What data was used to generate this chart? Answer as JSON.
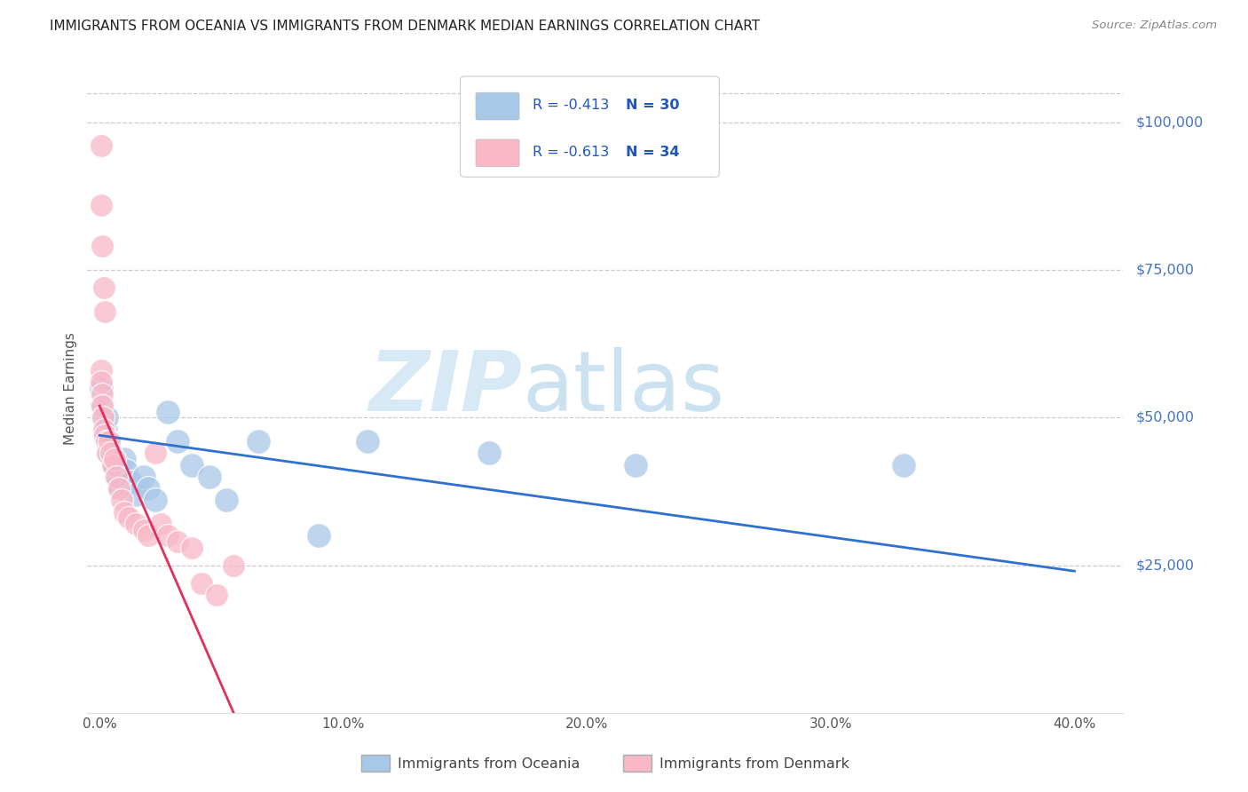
{
  "title": "IMMIGRANTS FROM OCEANIA VS IMMIGRANTS FROM DENMARK MEDIAN EARNINGS CORRELATION CHART",
  "source": "Source: ZipAtlas.com",
  "ylabel": "Median Earnings",
  "xlabel_ticks": [
    "0.0%",
    "10.0%",
    "20.0%",
    "30.0%",
    "40.0%"
  ],
  "xlabel_vals": [
    0.0,
    10.0,
    20.0,
    30.0,
    40.0
  ],
  "ytick_labels": [
    "$25,000",
    "$50,000",
    "$75,000",
    "$100,000"
  ],
  "ytick_vals": [
    25000,
    50000,
    75000,
    100000
  ],
  "ylim": [
    0,
    110000
  ],
  "xlim": [
    -0.5,
    42
  ],
  "blue_R": "-0.413",
  "blue_N": "30",
  "pink_R": "-0.613",
  "pink_N": "34",
  "blue_color": "#a8c8e8",
  "pink_color": "#f8b8c8",
  "blue_label": "Immigrants from Oceania",
  "pink_label": "Immigrants from Denmark",
  "blue_line_color": "#3070d0",
  "pink_line_color": "#e03060",
  "watermark_zip": "ZIP",
  "watermark_atlas": "atlas",
  "blue_dots": [
    [
      0.05,
      55000
    ],
    [
      0.1,
      52000
    ],
    [
      0.15,
      50000
    ],
    [
      0.2,
      47000
    ],
    [
      0.25,
      48000
    ],
    [
      0.3,
      50000
    ],
    [
      0.35,
      44000
    ],
    [
      0.4,
      46000
    ],
    [
      0.5,
      43000
    ],
    [
      0.6,
      42000
    ],
    [
      0.7,
      40000
    ],
    [
      0.85,
      38000
    ],
    [
      1.0,
      43000
    ],
    [
      1.1,
      41000
    ],
    [
      1.3,
      39000
    ],
    [
      1.5,
      37000
    ],
    [
      1.8,
      40000
    ],
    [
      2.0,
      38000
    ],
    [
      2.3,
      36000
    ],
    [
      2.8,
      51000
    ],
    [
      3.2,
      46000
    ],
    [
      3.8,
      42000
    ],
    [
      4.5,
      40000
    ],
    [
      5.2,
      36000
    ],
    [
      6.5,
      46000
    ],
    [
      9.0,
      30000
    ],
    [
      11.0,
      46000
    ],
    [
      16.0,
      44000
    ],
    [
      22.0,
      42000
    ],
    [
      33.0,
      42000
    ]
  ],
  "pink_dots": [
    [
      0.05,
      96000
    ],
    [
      0.08,
      86000
    ],
    [
      0.12,
      79000
    ],
    [
      0.18,
      72000
    ],
    [
      0.22,
      68000
    ],
    [
      0.05,
      58000
    ],
    [
      0.08,
      56000
    ],
    [
      0.1,
      54000
    ],
    [
      0.12,
      52000
    ],
    [
      0.15,
      50000
    ],
    [
      0.18,
      48000
    ],
    [
      0.22,
      47000
    ],
    [
      0.27,
      46000
    ],
    [
      0.32,
      44000
    ],
    [
      0.38,
      46000
    ],
    [
      0.45,
      44000
    ],
    [
      0.55,
      42000
    ],
    [
      0.6,
      43000
    ],
    [
      0.7,
      40000
    ],
    [
      0.8,
      38000
    ],
    [
      0.9,
      36000
    ],
    [
      1.0,
      34000
    ],
    [
      1.2,
      33000
    ],
    [
      1.5,
      32000
    ],
    [
      1.8,
      31000
    ],
    [
      2.0,
      30000
    ],
    [
      2.3,
      44000
    ],
    [
      2.5,
      32000
    ],
    [
      2.8,
      30000
    ],
    [
      3.2,
      29000
    ],
    [
      3.8,
      28000
    ],
    [
      4.2,
      22000
    ],
    [
      4.8,
      20000
    ],
    [
      5.5,
      25000
    ]
  ],
  "blue_line_x": [
    0,
    40
  ],
  "blue_line_y": [
    47000,
    24000
  ],
  "pink_line_x": [
    0.0,
    5.5
  ],
  "pink_line_y": [
    52000,
    0
  ]
}
